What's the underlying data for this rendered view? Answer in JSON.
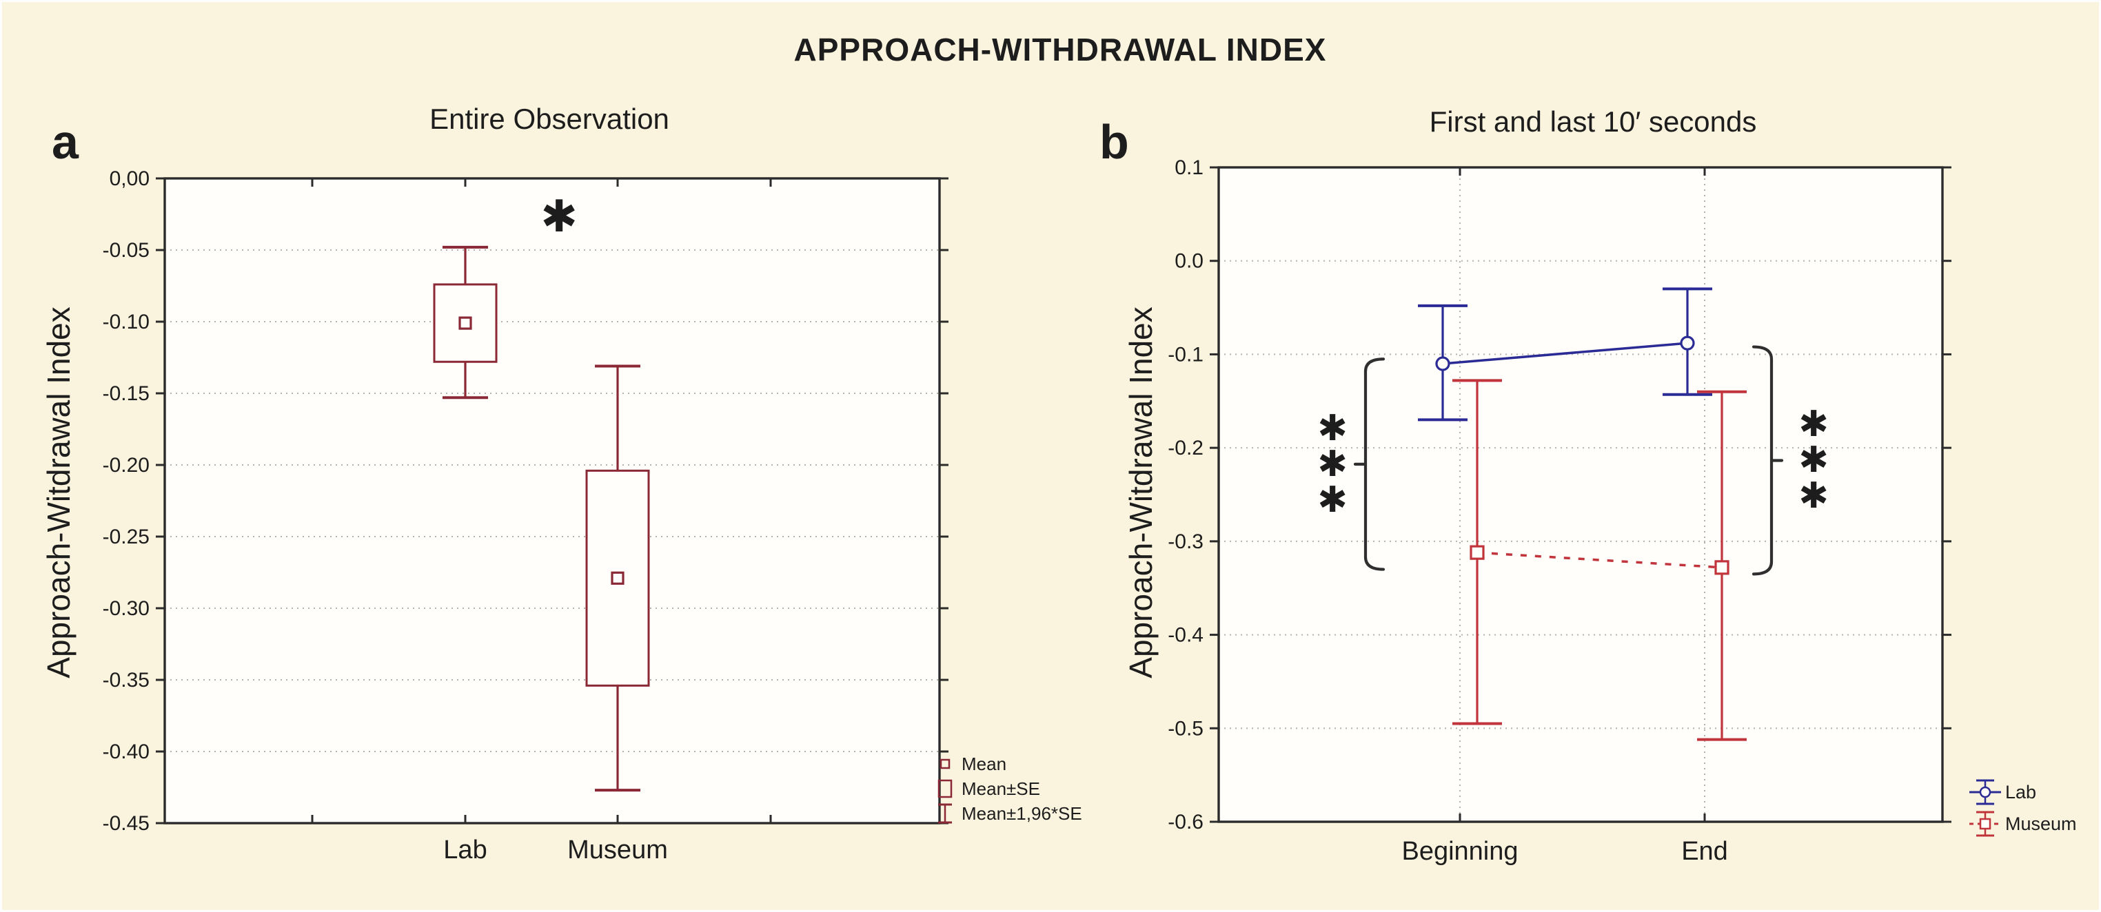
{
  "figure": {
    "title": "APPROACH-WITHDRAWAL INDEX",
    "panel_letters": [
      "a",
      "b"
    ],
    "background_color": "#faf3de",
    "plot_background_color": "#fffefa",
    "grid_color": "#b3b3aa",
    "axis_color": "#2b2b2b",
    "text_color": "#1d1d1d"
  },
  "chart_data": [
    {
      "panel": "a",
      "type": "box",
      "title": "Entire Observation",
      "ylabel": "Approach-Witdrawal Index",
      "categories": [
        "Lab",
        "Museum"
      ],
      "ylim": [
        -0.45,
        0.0
      ],
      "y_tick_labels": [
        "0,00",
        "-0.05",
        "-0.10",
        "-0.15",
        "-0.20",
        "-0.25",
        "-0.30",
        "-0.35",
        "-0.40",
        "-0.45"
      ],
      "y_tick_values": [
        0,
        -0.05,
        -0.1,
        -0.15,
        -0.2,
        -0.25,
        -0.3,
        -0.35,
        -0.4,
        -0.45
      ],
      "grid": true,
      "color": "#8b2836",
      "boxes": [
        {
          "category": "Lab",
          "mean": -0.101,
          "se_high": -0.074,
          "se_low": -0.128,
          "ci_high": -0.048,
          "ci_low": -0.153
        },
        {
          "category": "Museum",
          "mean": -0.279,
          "se_high": -0.204,
          "se_low": -0.354,
          "ci_high": -0.131,
          "ci_low": -0.427
        }
      ],
      "significance": {
        "label": "✱",
        "y": -0.026,
        "between": [
          "Lab",
          "Museum"
        ]
      },
      "legend": [
        {
          "symbol": "mean-square",
          "label": "Mean"
        },
        {
          "symbol": "se-box",
          "label": "Mean±SE"
        },
        {
          "symbol": "ci-whisker",
          "label": "Mean±1,96*SE"
        }
      ],
      "legend_position": "outside-bottom-right"
    },
    {
      "panel": "b",
      "type": "line",
      "title": "First and last 10′ seconds",
      "ylabel": "Approach-Witdrawal Index",
      "categories": [
        "Beginning",
        "End"
      ],
      "ylim": [
        -0.6,
        0.1
      ],
      "y_tick_labels": [
        "0.1",
        "0.0",
        "-0.1",
        "-0.2",
        "-0.3",
        "-0.4",
        "-0.5",
        "-0.6"
      ],
      "y_tick_values": [
        0.1,
        0,
        -0.1,
        -0.2,
        -0.3,
        -0.4,
        -0.5,
        -0.6
      ],
      "grid": true,
      "series": [
        {
          "name": "Lab",
          "color": "#2b2b96",
          "line_style": "solid",
          "marker": "circle",
          "means": [
            -0.11,
            -0.088
          ],
          "ci_high": [
            -0.048,
            -0.03
          ],
          "ci_low": [
            -0.17,
            -0.143
          ]
        },
        {
          "name": "Museum",
          "color": "#c1343c",
          "line_style": "dashed",
          "marker": "square",
          "means": [
            -0.312,
            -0.328
          ],
          "ci_high": [
            -0.128,
            -0.14
          ],
          "ci_low": [
            -0.495,
            -0.512
          ]
        }
      ],
      "significance": [
        {
          "label": "✱✱✱",
          "at": "Beginning",
          "side": "left",
          "span": [
            -0.105,
            -0.33
          ]
        },
        {
          "label": "✱✱✱",
          "at": "End",
          "side": "right",
          "span": [
            -0.092,
            -0.335
          ]
        }
      ],
      "legend_position": "outside-bottom-right"
    }
  ]
}
